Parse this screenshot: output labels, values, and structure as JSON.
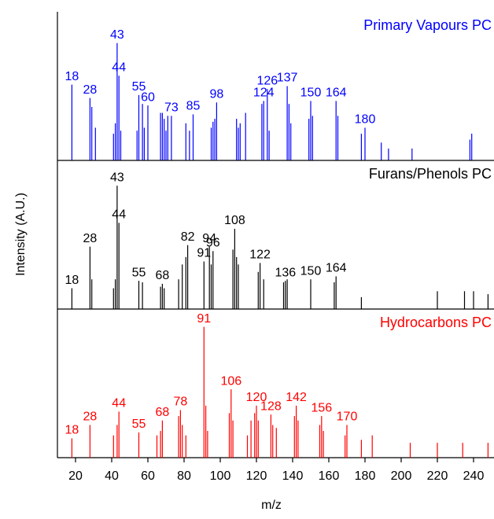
{
  "chart_data": {
    "type": "stem",
    "xlabel": "m/z",
    "ylabel": "Intensity (A.U.)",
    "xlim": [
      10,
      250
    ],
    "xticks": [
      20,
      40,
      60,
      80,
      100,
      120,
      140,
      160,
      180,
      200,
      220,
      240
    ],
    "panels": [
      {
        "title": "Primary Vapours PC",
        "color": "#0000ff",
        "ylim": [
          0,
          100
        ],
        "labeled": {
          "x": [
            18,
            28,
            43,
            44,
            55,
            60,
            73,
            85,
            98,
            124,
            126,
            137,
            150,
            164,
            180
          ],
          "values": [
            51,
            42,
            79,
            57,
            44,
            37,
            30,
            31,
            39,
            40,
            48,
            50,
            40,
            40,
            22
          ]
        },
        "unlabeled": {
          "x": [
            29,
            31,
            41,
            42,
            45,
            54,
            57,
            58,
            67,
            68,
            69,
            70,
            71,
            81,
            83,
            95,
            96,
            97,
            109,
            110,
            111,
            114,
            123,
            127,
            138,
            139,
            149,
            151,
            165,
            178,
            189,
            193,
            206,
            238,
            239
          ],
          "values": [
            36,
            22,
            18,
            25,
            20,
            20,
            38,
            22,
            32,
            32,
            28,
            20,
            30,
            25,
            20,
            22,
            26,
            28,
            28,
            22,
            25,
            32,
            38,
            20,
            38,
            25,
            28,
            30,
            30,
            18,
            12,
            8,
            8,
            14,
            18
          ]
        }
      },
      {
        "title": "Furans/Phenols PC",
        "color": "#000000",
        "ylim": [
          0,
          100
        ],
        "labeled": {
          "x": [
            18,
            28,
            43,
            44,
            55,
            68,
            82,
            91,
            94,
            96,
            108,
            122,
            136,
            150,
            164
          ],
          "values": [
            14,
            42,
            83,
            58,
            19,
            17,
            43,
            32,
            42,
            39,
            54,
            31,
            19,
            20,
            22
          ]
        },
        "unlabeled": {
          "x": [
            29,
            41,
            42,
            57,
            67,
            69,
            77,
            79,
            81,
            95,
            107,
            109,
            110,
            121,
            124,
            135,
            137,
            163,
            178,
            220,
            235,
            240,
            248
          ],
          "values": [
            20,
            14,
            20,
            18,
            15,
            14,
            20,
            30,
            35,
            30,
            40,
            35,
            30,
            25,
            20,
            18,
            20,
            18,
            8,
            12,
            12,
            12,
            10
          ]
        }
      },
      {
        "title": "Hydrocarbons PC",
        "color": "#ff0000",
        "ylim": [
          0,
          100
        ],
        "labeled": {
          "x": [
            18,
            28,
            44,
            55,
            68,
            78,
            91,
            106,
            120,
            128,
            142,
            156,
            170
          ],
          "values": [
            13,
            22,
            31,
            17,
            25,
            32,
            88,
            46,
            35,
            29,
            35,
            28,
            22
          ]
        },
        "unlabeled": {
          "x": [
            41,
            43,
            65,
            67,
            77,
            79,
            81,
            92,
            93,
            105,
            107,
            115,
            117,
            119,
            121,
            129,
            131,
            141,
            143,
            155,
            157,
            169,
            178,
            184,
            205,
            220,
            234,
            248
          ],
          "values": [
            15,
            22,
            15,
            18,
            28,
            22,
            15,
            35,
            18,
            30,
            25,
            15,
            25,
            30,
            25,
            22,
            20,
            28,
            25,
            22,
            18,
            15,
            12,
            15,
            10,
            10,
            10,
            10
          ]
        }
      }
    ]
  }
}
